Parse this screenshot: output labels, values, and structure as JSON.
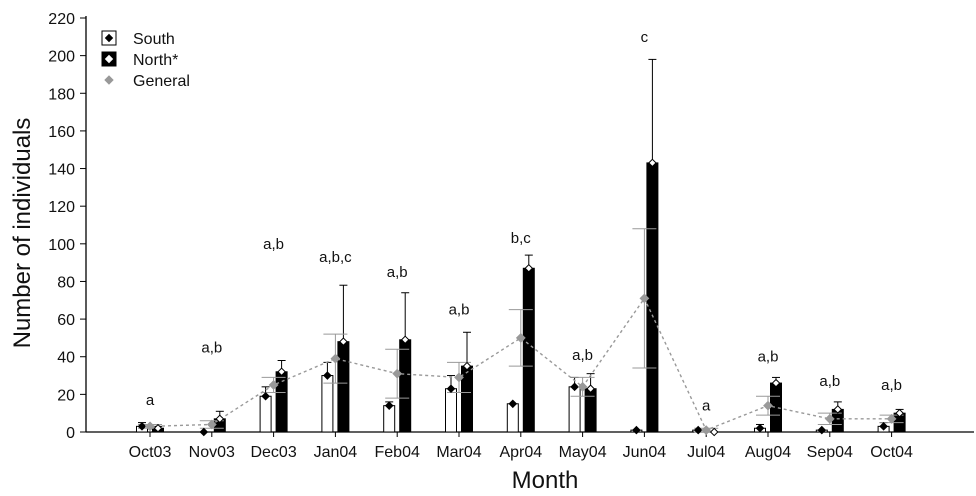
{
  "chart_data": {
    "type": "bar",
    "xlabel": "Month",
    "ylabel": "Number of individuals",
    "ylim": [
      0,
      220
    ],
    "yticks": [
      0,
      20,
      40,
      60,
      80,
      100,
      120,
      140,
      160,
      180,
      200,
      220
    ],
    "categories": [
      "Oct03",
      "Nov03",
      "Dec03",
      "Jan04",
      "Feb04",
      "Mar04",
      "Apr04",
      "May04",
      "Jun04",
      "Jul04",
      "Aug04",
      "Sep04",
      "Oct04"
    ],
    "series": [
      {
        "name": "South",
        "kind": "bar",
        "fill": "#ffffff",
        "values": [
          3,
          0,
          19,
          30,
          14,
          23,
          15,
          24,
          1,
          1,
          2,
          1,
          3
        ],
        "errors": [
          2,
          0,
          5,
          7,
          2,
          7,
          0,
          5,
          0,
          0,
          2,
          0,
          2
        ]
      },
      {
        "name": "North*",
        "kind": "bar",
        "fill": "#000000",
        "values": [
          2,
          7,
          32,
          48,
          49,
          35,
          87,
          23,
          143,
          0,
          26,
          12,
          10
        ],
        "errors": [
          1,
          4,
          6,
          30,
          25,
          18,
          7,
          8,
          55,
          0,
          3,
          4,
          2
        ]
      },
      {
        "name": "General",
        "kind": "line",
        "color": "#999999",
        "values": [
          3,
          4,
          25,
          39,
          31,
          29,
          50,
          24,
          71,
          1,
          14,
          7,
          7
        ],
        "errors": [
          1,
          2,
          4,
          13,
          13,
          8,
          15,
          5,
          37,
          1,
          5,
          3,
          2
        ]
      }
    ],
    "annotations": [
      "a",
      "a,b",
      "a,b",
      "a,b,c",
      "a,b",
      "a,b",
      "b,c",
      "a,b",
      "c",
      "a",
      "a,b",
      "a,b",
      "a,b"
    ],
    "annotation_values": [
      17,
      45,
      100,
      93,
      85,
      65,
      103,
      41,
      210,
      14,
      40,
      27,
      25
    ],
    "legend_position": "top-left",
    "grid": false
  }
}
